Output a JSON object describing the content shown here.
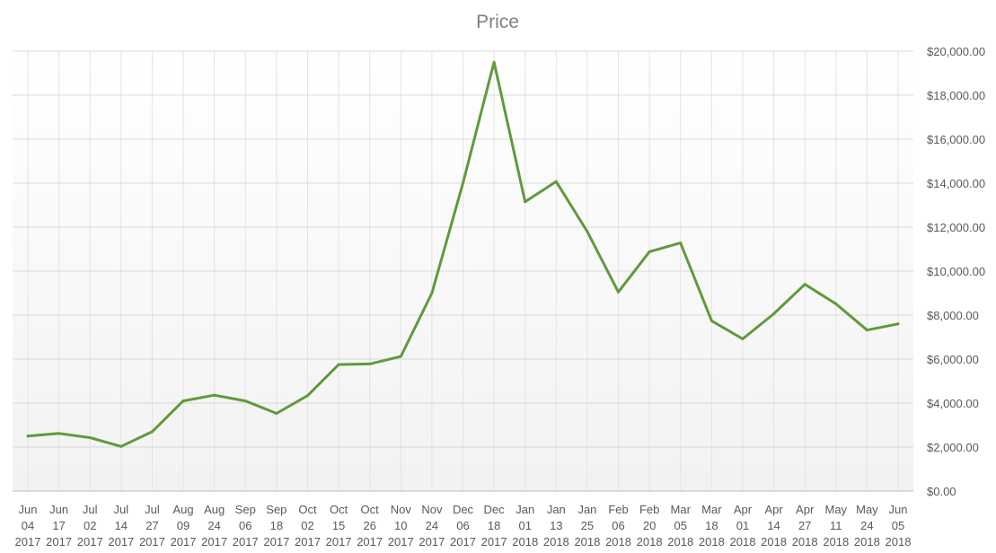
{
  "chart_data": {
    "type": "line",
    "title": "Price",
    "xlabel": "",
    "ylabel": "",
    "ylim": [
      0,
      20000
    ],
    "y_ticks": [
      "$0.00",
      "$2,000.00",
      "$4,000.00",
      "$6,000.00",
      "$8,000.00",
      "$10,000.00",
      "$12,000.00",
      "$14,000.00",
      "$16,000.00",
      "$18,000.00",
      "$20,000.00"
    ],
    "y_axis_position": "right",
    "grid": true,
    "legend": "none",
    "categories": [
      [
        "Jun",
        "04",
        "2017"
      ],
      [
        "Jun",
        "17",
        "2017"
      ],
      [
        "Jul",
        "02",
        "2017"
      ],
      [
        "Jul",
        "14",
        "2017"
      ],
      [
        "Jul",
        "27",
        "2017"
      ],
      [
        "Aug",
        "09",
        "2017"
      ],
      [
        "Aug",
        "24",
        "2017"
      ],
      [
        "Sep",
        "06",
        "2017"
      ],
      [
        "Sep",
        "18",
        "2017"
      ],
      [
        "Oct",
        "02",
        "2017"
      ],
      [
        "Oct",
        "15",
        "2017"
      ],
      [
        "Oct",
        "26",
        "2017"
      ],
      [
        "Nov",
        "10",
        "2017"
      ],
      [
        "Nov",
        "24",
        "2017"
      ],
      [
        "Dec",
        "06",
        "2017"
      ],
      [
        "Dec",
        "18",
        "2017"
      ],
      [
        "Jan",
        "01",
        "2018"
      ],
      [
        "Jan",
        "13",
        "2018"
      ],
      [
        "Jan",
        "25",
        "2018"
      ],
      [
        "Feb",
        "06",
        "2018"
      ],
      [
        "Feb",
        "20",
        "2018"
      ],
      [
        "Mar",
        "05",
        "2018"
      ],
      [
        "Mar",
        "18",
        "2018"
      ],
      [
        "Apr",
        "01",
        "2018"
      ],
      [
        "Apr",
        "14",
        "2018"
      ],
      [
        "Apr",
        "27",
        "2018"
      ],
      [
        "May",
        "11",
        "2018"
      ],
      [
        "May",
        "24",
        "2018"
      ],
      [
        "Jun",
        "05",
        "2018"
      ]
    ],
    "series": [
      {
        "color": "#5f9a3c",
        "values": [
          2500,
          2620,
          2430,
          2030,
          2700,
          4100,
          4360,
          4100,
          3530,
          4340,
          5750,
          5780,
          6120,
          9000,
          14000,
          19500,
          13150,
          14070,
          11800,
          9050,
          10880,
          11280,
          7740,
          6920,
          8060,
          9400,
          8510,
          7320,
          7600
        ]
      }
    ],
    "colors": {
      "grid": "#d9d9d9",
      "plot_gradient_top": "#ffffff",
      "plot_gradient_bottom": "#f2f2f2"
    }
  }
}
